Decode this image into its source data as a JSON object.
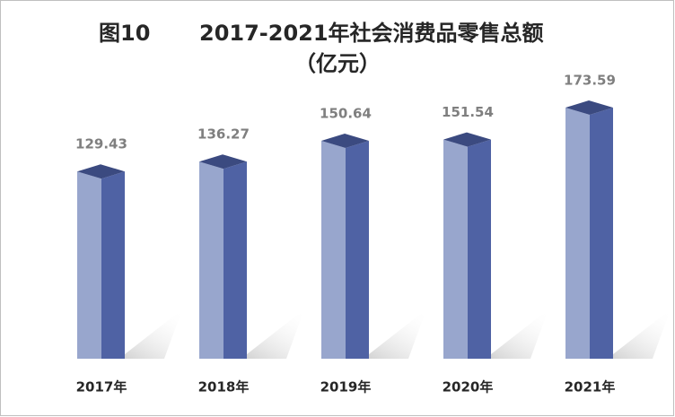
{
  "chart_data": {
    "type": "bar3d",
    "figure_label": "图10",
    "title": "2017-2021年社会消费品零售总额",
    "unit": "（亿元）",
    "categories": [
      "2017年",
      "2018年",
      "2019年",
      "2020年",
      "2021年"
    ],
    "values": [
      129.43,
      136.27,
      150.64,
      151.54,
      173.59
    ],
    "colors": {
      "front": "#98a6cd",
      "side": "#4f62a4",
      "top": "#3b4a80"
    }
  }
}
